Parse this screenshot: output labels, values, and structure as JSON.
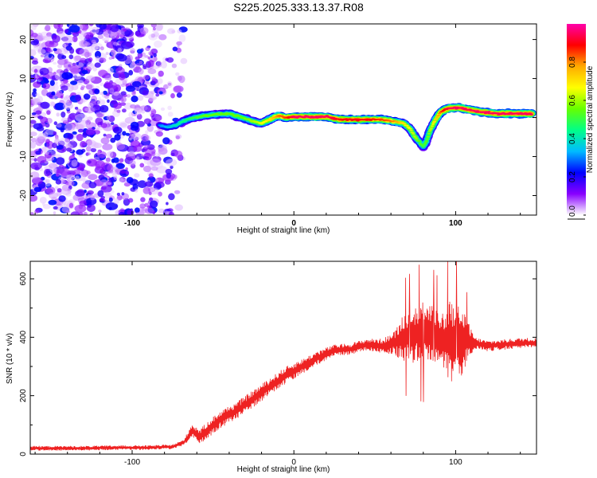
{
  "title": "S225.2025.333.13.37.R08",
  "chart_data": [
    {
      "type": "heatmap",
      "xlabel": "Height of straight line (km)",
      "ylabel": "Frequency (Hz)",
      "xlim": [
        -163,
        150
      ],
      "ylim": [
        -25,
        24
      ],
      "xticks": [
        -100,
        0,
        100
      ],
      "yticks": [
        -20,
        -10,
        0,
        10,
        20
      ],
      "ridge": {
        "x": [
          -83,
          -78,
          -73,
          -68,
          -62,
          -55,
          -48,
          -40,
          -32,
          -25,
          -20,
          -15,
          -10,
          -5,
          0,
          10,
          20,
          28,
          35,
          45,
          55,
          62,
          68,
          72,
          75,
          78,
          80,
          82,
          84,
          87,
          90,
          93,
          97,
          102,
          108,
          115,
          125,
          135,
          147
        ],
        "y": [
          -2,
          -2.5,
          -2,
          -0.8,
          0,
          0.5,
          0.8,
          1,
          0,
          -1,
          -1.5,
          -0.5,
          0.5,
          0,
          0.2,
          0.2,
          0.2,
          -0.5,
          -0.5,
          -0.5,
          -0.5,
          -1,
          -1.5,
          -3,
          -5,
          -6.5,
          -7.5,
          -6,
          -3.5,
          -1,
          1,
          2,
          2.5,
          2.5,
          2,
          1.5,
          1,
          1,
          1
        ],
        "amplitude": [
          0.3,
          0.35,
          0.4,
          0.45,
          0.5,
          0.55,
          0.55,
          0.55,
          0.55,
          0.6,
          0.65,
          0.7,
          0.8,
          0.85,
          0.95,
          0.95,
          0.95,
          0.9,
          0.9,
          0.9,
          0.85,
          0.8,
          0.7,
          0.65,
          0.6,
          0.55,
          0.5,
          0.55,
          0.6,
          0.7,
          0.8,
          0.9,
          0.95,
          0.95,
          0.95,
          0.95,
          0.95,
          0.95,
          0.95
        ]
      },
      "noise_region_x": [
        -163,
        -68
      ],
      "colorbar": {
        "label": "Normalized spectral amplitude",
        "range": [
          0.0,
          1.0
        ],
        "ticks": [
          0.0,
          0.2,
          0.4,
          0.6,
          0.8
        ],
        "colors": [
          "#ffffff",
          "#8800ff",
          "#0000ff",
          "#00bbff",
          "#00ff88",
          "#66ff00",
          "#ffff00",
          "#ffaa00",
          "#ff0000",
          "#ff00aa"
        ]
      },
      "grid": false
    },
    {
      "type": "line",
      "xlabel": "Height of straight line (km)",
      "ylabel": "SNR (10 * v/v)",
      "xlim": [
        -163,
        150
      ],
      "ylim": [
        0,
        660
      ],
      "xticks": [
        -100,
        0,
        100
      ],
      "yticks": [
        0,
        200,
        400,
        600
      ],
      "series": [
        {
          "name": "SNR",
          "color": "#ee2222",
          "x": [
            -163,
            -150,
            -130,
            -110,
            -90,
            -75,
            -68,
            -63,
            -58,
            -52,
            -45,
            -35,
            -25,
            -15,
            -5,
            5,
            15,
            25,
            35,
            45,
            55,
            62,
            68,
            74,
            80,
            86,
            90,
            94,
            97,
            99,
            101,
            104,
            108,
            112,
            120,
            130,
            140,
            150
          ],
          "y": [
            20,
            20,
            20,
            22,
            22,
            25,
            40,
            80,
            60,
            90,
            120,
            150,
            190,
            230,
            270,
            300,
            330,
            355,
            360,
            375,
            370,
            380,
            400,
            410,
            420,
            415,
            400,
            390,
            380,
            370,
            400,
            380,
            390,
            380,
            370,
            375,
            380,
            380
          ],
          "spread": [
            8,
            8,
            8,
            8,
            8,
            8,
            10,
            25,
            25,
            30,
            30,
            30,
            30,
            30,
            30,
            25,
            25,
            20,
            20,
            20,
            25,
            40,
            90,
            100,
            110,
            100,
            90,
            110,
            150,
            160,
            140,
            120,
            60,
            20,
            18,
            18,
            18,
            18
          ]
        }
      ],
      "grid": false
    }
  ]
}
